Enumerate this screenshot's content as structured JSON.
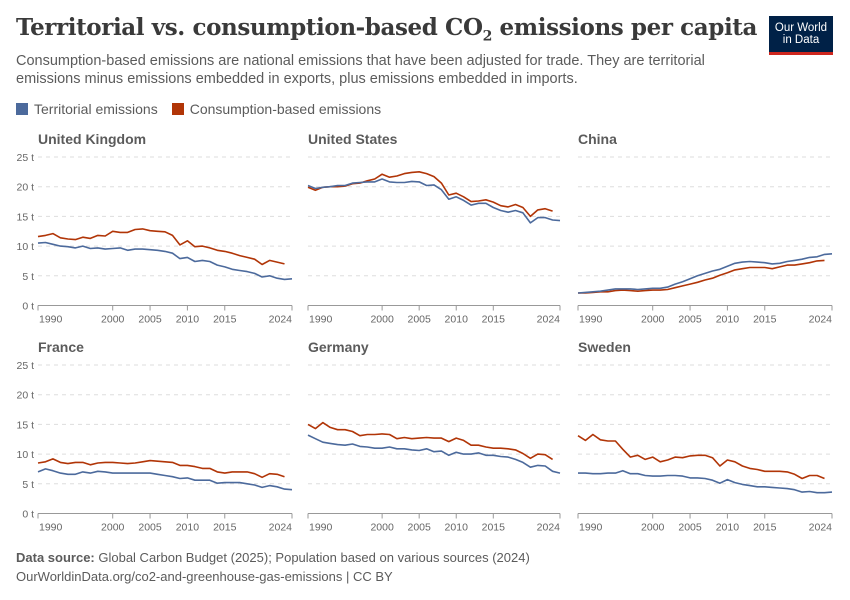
{
  "header": {
    "title_main": "Territorial vs. consumption-based CO",
    "title_sub": "2",
    "title_end": " emissions per capita",
    "subtitle": "Consumption-based emissions are national emissions that have been adjusted for trade. They are territorial emissions minus emissions embedded in exports, plus emissions embedded in imports.",
    "logo_line1": "Our World",
    "logo_line2": "in Data"
  },
  "legend": [
    {
      "label": "Territorial emissions",
      "color": "#4c6a9c"
    },
    {
      "label": "Consumption-based emissions",
      "color": "#b13507"
    }
  ],
  "footer": {
    "source_label": "Data source:",
    "source_text": " Global Carbon Budget (2025); Population based on various sources (2024)",
    "url_line": "OurWorldinData.org/co2-and-greenhouse-gas-emissions | CC BY"
  },
  "chart_data": {
    "type": "line",
    "layout": "small-multiples",
    "grid": true,
    "ylim": [
      0,
      25
    ],
    "y_ticks": [
      "0 t",
      "5 t",
      "10 t",
      "15 t",
      "20 t",
      "25 t"
    ],
    "y_tick_values": [
      0,
      5,
      10,
      15,
      20,
      25
    ],
    "x_ticks": [
      1990,
      2000,
      2005,
      2010,
      2015,
      2024
    ],
    "xlim": [
      1990,
      2024
    ],
    "territorial_start": 1990,
    "consumption_start": 1990,
    "panels": [
      {
        "title": "United Kingdom",
        "territorial": [
          10.5,
          10.6,
          10.3,
          10.0,
          9.9,
          9.7,
          10.0,
          9.6,
          9.7,
          9.5,
          9.6,
          9.7,
          9.3,
          9.5,
          9.5,
          9.4,
          9.3,
          9.1,
          8.8,
          7.9,
          8.1,
          7.4,
          7.6,
          7.4,
          6.8,
          6.5,
          6.1,
          5.9,
          5.7,
          5.4,
          4.8,
          5.0,
          4.6,
          4.4,
          4.5
        ],
        "consumption": [
          11.6,
          11.8,
          12.1,
          11.4,
          11.2,
          11.1,
          11.5,
          11.3,
          11.8,
          11.7,
          12.5,
          12.3,
          12.3,
          12.8,
          12.9,
          12.6,
          12.5,
          12.4,
          11.8,
          10.2,
          10.9,
          9.9,
          10.0,
          9.7,
          9.3,
          9.1,
          8.8,
          8.4,
          8.1,
          7.8,
          6.9,
          7.6,
          7.3,
          7.0
        ]
      },
      {
        "title": "United States",
        "territorial": [
          20.2,
          19.7,
          19.9,
          20.0,
          20.2,
          20.2,
          20.6,
          20.7,
          20.8,
          20.8,
          21.3,
          20.8,
          20.7,
          20.7,
          20.9,
          20.8,
          20.2,
          20.3,
          19.5,
          17.9,
          18.3,
          17.7,
          16.9,
          17.2,
          17.2,
          16.5,
          16.0,
          15.7,
          16.0,
          15.6,
          13.9,
          14.8,
          14.8,
          14.4,
          14.3
        ],
        "consumption": [
          19.9,
          19.4,
          19.9,
          20.0,
          20.0,
          20.1,
          20.5,
          20.6,
          21.0,
          21.3,
          22.1,
          21.6,
          21.8,
          22.2,
          22.4,
          22.5,
          22.2,
          21.7,
          20.6,
          18.6,
          18.9,
          18.3,
          17.5,
          17.6,
          17.8,
          17.4,
          16.8,
          16.6,
          17.0,
          16.5,
          15.0,
          16.1,
          16.3,
          15.9
        ]
      },
      {
        "title": "China",
        "territorial": [
          2.1,
          2.2,
          2.3,
          2.4,
          2.6,
          2.8,
          2.8,
          2.8,
          2.7,
          2.8,
          2.9,
          2.9,
          3.1,
          3.6,
          4.0,
          4.5,
          5.0,
          5.4,
          5.8,
          6.1,
          6.6,
          7.1,
          7.3,
          7.4,
          7.3,
          7.2,
          7.0,
          7.1,
          7.4,
          7.6,
          7.8,
          8.1,
          8.2,
          8.6,
          8.7
        ],
        "consumption": [
          2.1,
          2.1,
          2.2,
          2.3,
          2.3,
          2.5,
          2.6,
          2.5,
          2.4,
          2.5,
          2.6,
          2.6,
          2.7,
          3.0,
          3.3,
          3.6,
          3.9,
          4.3,
          4.6,
          5.1,
          5.5,
          6.0,
          6.2,
          6.4,
          6.4,
          6.4,
          6.2,
          6.5,
          6.8,
          6.8,
          7.0,
          7.2,
          7.5,
          7.6
        ]
      },
      {
        "title": "France",
        "territorial": [
          7.0,
          7.5,
          7.2,
          6.8,
          6.6,
          6.6,
          7.0,
          6.8,
          7.1,
          7.0,
          6.8,
          6.8,
          6.8,
          6.8,
          6.8,
          6.8,
          6.6,
          6.4,
          6.2,
          5.9,
          6.0,
          5.6,
          5.6,
          5.6,
          5.1,
          5.2,
          5.2,
          5.2,
          5.0,
          4.8,
          4.4,
          4.7,
          4.5,
          4.1,
          4.0
        ],
        "consumption": [
          8.5,
          8.7,
          9.2,
          8.6,
          8.4,
          8.6,
          8.6,
          8.2,
          8.5,
          8.6,
          8.6,
          8.5,
          8.4,
          8.5,
          8.7,
          8.9,
          8.8,
          8.7,
          8.6,
          8.1,
          8.1,
          7.9,
          7.6,
          7.6,
          7.0,
          6.8,
          7.0,
          7.0,
          7.0,
          6.7,
          6.1,
          6.7,
          6.6,
          6.2
        ]
      },
      {
        "title": "Germany",
        "territorial": [
          13.2,
          12.6,
          12.0,
          11.8,
          11.6,
          11.5,
          11.7,
          11.3,
          11.2,
          11.0,
          11.0,
          11.2,
          10.9,
          10.9,
          10.7,
          10.6,
          10.9,
          10.4,
          10.5,
          9.8,
          10.3,
          10.0,
          10.0,
          10.2,
          9.8,
          9.8,
          9.6,
          9.5,
          9.1,
          8.6,
          7.8,
          8.1,
          8.0,
          7.1,
          6.8
        ],
        "consumption": [
          15.0,
          14.3,
          15.3,
          14.5,
          14.1,
          14.1,
          13.8,
          13.1,
          13.3,
          13.3,
          13.4,
          13.3,
          12.6,
          12.8,
          12.6,
          12.7,
          12.8,
          12.7,
          12.7,
          12.1,
          12.7,
          12.3,
          11.5,
          11.5,
          11.2,
          11.0,
          11.0,
          10.9,
          10.7,
          10.1,
          9.3,
          10.0,
          9.9,
          9.1
        ]
      },
      {
        "title": "Sweden",
        "territorial": [
          6.8,
          6.8,
          6.7,
          6.7,
          6.8,
          6.8,
          7.2,
          6.7,
          6.7,
          6.4,
          6.3,
          6.3,
          6.4,
          6.4,
          6.3,
          6.0,
          6.0,
          5.9,
          5.6,
          5.1,
          5.7,
          5.2,
          4.9,
          4.7,
          4.5,
          4.5,
          4.4,
          4.3,
          4.2,
          4.0,
          3.6,
          3.7,
          3.5,
          3.5,
          3.6
        ],
        "consumption": [
          13.1,
          12.3,
          13.3,
          12.4,
          12.2,
          12.2,
          10.8,
          9.5,
          9.8,
          9.1,
          9.5,
          8.7,
          9.0,
          9.5,
          9.4,
          9.7,
          9.8,
          9.8,
          9.4,
          8.0,
          9.0,
          8.7,
          8.0,
          7.6,
          7.4,
          7.1,
          7.1,
          7.1,
          7.0,
          6.6,
          5.9,
          6.4,
          6.4,
          5.9
        ]
      }
    ]
  }
}
